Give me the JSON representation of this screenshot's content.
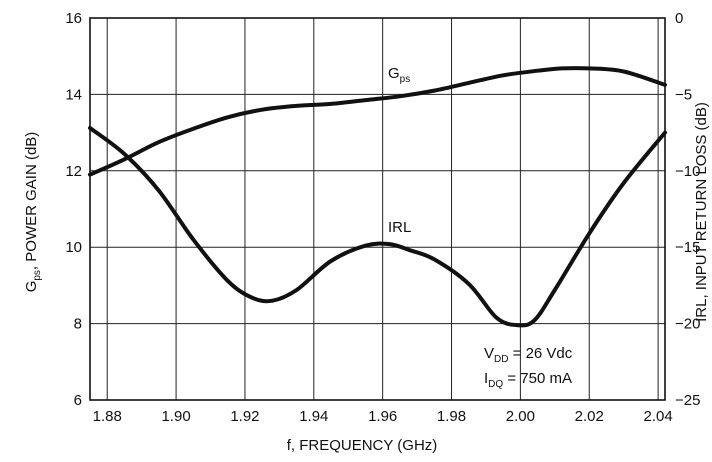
{
  "chart_data": {
    "type": "line",
    "xlabel": "f, FREQUENCY (GHz)",
    "ylabel_left": {
      "main": "G",
      "sub": "ps",
      "rest": ", POWER GAIN (dB)"
    },
    "ylabel_right": "IRL, INPUT RETURN LOSS (dB)",
    "xlim": [
      1.875,
      2.042
    ],
    "ylim_left": [
      6,
      16
    ],
    "ylim_right": [
      -25,
      0
    ],
    "x_ticks": [
      "1.88",
      "1.90",
      "1.92",
      "1.94",
      "1.96",
      "1.98",
      "2.00",
      "2.02",
      "2.04"
    ],
    "y_left_ticks": [
      "6",
      "8",
      "10",
      "12",
      "14",
      "16"
    ],
    "y_right_ticks": [
      "0",
      "−5",
      "−10",
      "−15",
      "−20",
      "−25"
    ],
    "grid": true,
    "series": [
      {
        "name": {
          "main": "G",
          "sub": "ps"
        },
        "axis": "left",
        "x": [
          1.875,
          1.885,
          1.895,
          1.905,
          1.915,
          1.925,
          1.935,
          1.945,
          1.955,
          1.965,
          1.975,
          1.985,
          1.995,
          2.005,
          2.012,
          2.02,
          2.03,
          2.042
        ],
        "y": [
          11.9,
          12.3,
          12.75,
          13.1,
          13.4,
          13.6,
          13.7,
          13.75,
          13.85,
          13.95,
          14.1,
          14.3,
          14.5,
          14.62,
          14.68,
          14.68,
          14.6,
          14.25
        ]
      },
      {
        "name": "IRL",
        "axis": "right",
        "x": [
          1.875,
          1.885,
          1.895,
          1.905,
          1.915,
          1.922,
          1.928,
          1.935,
          1.945,
          1.955,
          1.962,
          1.968,
          1.975,
          1.985,
          1.993,
          1.999,
          2.004,
          2.01,
          2.02,
          2.03,
          2.042
        ],
        "y": [
          -7.2,
          -8.9,
          -11.3,
          -14.5,
          -17.2,
          -18.3,
          -18.5,
          -17.8,
          -15.9,
          -14.9,
          -14.8,
          -15.2,
          -15.8,
          -17.4,
          -19.6,
          -20.1,
          -19.8,
          -17.8,
          -14.1,
          -10.8,
          -7.5
        ]
      }
    ],
    "annotations": [
      {
        "main": "V",
        "sub": "DD",
        "rest": " = 26 Vdc"
      },
      {
        "main": "I",
        "sub": "DQ",
        "rest": " = 750 mA"
      }
    ]
  }
}
